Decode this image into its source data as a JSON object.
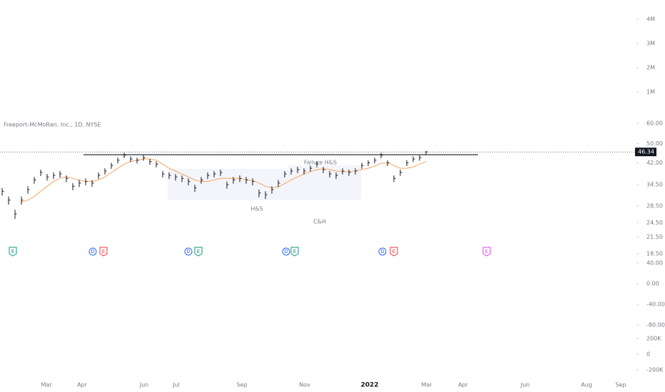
{
  "chart_data": {
    "type": "ohlc",
    "title": "Freeport-McMoRan, Inc., 1D, NYSE",
    "log_scale": true,
    "ylim": [
      18.5,
      60
    ],
    "yticks": [
      {
        "value": 60,
        "label": "60.00"
      },
      {
        "value": 50,
        "label": "50.00"
      },
      {
        "value": 42,
        "label": "42.00"
      },
      {
        "value": 34.5,
        "label": "34.50"
      },
      {
        "value": 28.5,
        "label": "28.50"
      },
      {
        "value": 24.5,
        "label": "24.50"
      },
      {
        "value": 21.5,
        "label": "21.50"
      },
      {
        "value": 18.5,
        "label": "18.50"
      }
    ],
    "xticks": [
      "Mar",
      "Apr",
      "Jun",
      "Jul",
      "Sep",
      "Nov",
      "2022",
      "Mar",
      "Apr",
      "Jun",
      "Aug",
      "Sep"
    ],
    "color": "#131722",
    "high": [
      33.5,
      31,
      27.5,
      31,
      34,
      37,
      39.5,
      38,
      38.5,
      39,
      37.5,
      35,
      36,
      36.5,
      36,
      38.5,
      40,
      42,
      44,
      46,
      44.5,
      44,
      45,
      43.5,
      42.5,
      39,
      38.5,
      38,
      37.5,
      36.5,
      34.5,
      37,
      38.5,
      39,
      39.5,
      35.5,
      37,
      37.5,
      37,
      36.5,
      33,
      32.5,
      34,
      36,
      39,
      40,
      40.5,
      40,
      41,
      42.5,
      40.5,
      39,
      38.5,
      40,
      39.5,
      40,
      42,
      43,
      44,
      46,
      43,
      37.5,
      39.5,
      43,
      44.5,
      45,
      46.8
    ],
    "low": [
      31.3,
      28.8,
      25.3,
      28.8,
      31.8,
      34.8,
      37.3,
      35.8,
      36.3,
      36.8,
      35.3,
      32.8,
      33.8,
      34.3,
      33.8,
      36.3,
      37.8,
      39.8,
      41.8,
      43.8,
      42.3,
      41.8,
      42.8,
      41.3,
      40.3,
      36.8,
      36.3,
      35.8,
      35.3,
      34.3,
      32.3,
      34.8,
      36.3,
      36.8,
      37.3,
      33.3,
      34.8,
      35.3,
      34.8,
      34.3,
      30.8,
      30.3,
      31.8,
      33.8,
      36.8,
      37.8,
      38.3,
      37.8,
      38.8,
      40.3,
      38.3,
      36.8,
      36.3,
      37.8,
      37.3,
      37.8,
      39.8,
      40.8,
      41.8,
      43.8,
      40.8,
      35.3,
      37.3,
      40.8,
      42.3,
      42.8,
      45.1
    ],
    "close": [
      32.5,
      30,
      26.5,
      30,
      33,
      36,
      38.5,
      37,
      37.5,
      38,
      36.5,
      34,
      35,
      35.5,
      35,
      37.5,
      39,
      41,
      43,
      45,
      43.5,
      43,
      44,
      42.5,
      41.5,
      38,
      37.5,
      37,
      36.5,
      35.5,
      33.5,
      36,
      37.5,
      38,
      38.5,
      34.5,
      36,
      36.5,
      36,
      35.5,
      32,
      31.5,
      33,
      35,
      38,
      39,
      39.5,
      39,
      40,
      41.5,
      39.5,
      38,
      37.5,
      39,
      38.5,
      39,
      41,
      42,
      43,
      45,
      42,
      36.5,
      38.5,
      42,
      43.5,
      44,
      46.34
    ],
    "ma_color": "#f7a35c",
    "ma": [
      null,
      null,
      null,
      29.5,
      30,
      31,
      32.5,
      34,
      35.5,
      36.5,
      37,
      36.5,
      36,
      35.5,
      35.5,
      36,
      37,
      38.5,
      40,
      41.5,
      42.5,
      43,
      43.5,
      43.5,
      43,
      41.5,
      40,
      39,
      38,
      37,
      36,
      35.5,
      35.5,
      36,
      36.5,
      36.5,
      36.5,
      36.5,
      36,
      35.8,
      35,
      34,
      33.5,
      33.8,
      34.8,
      36,
      37,
      38,
      38.8,
      39.5,
      39.8,
      39.5,
      39,
      38.8,
      38.8,
      39,
      39.5,
      40,
      40.8,
      41.8,
      42,
      41,
      40,
      40,
      40.5,
      41.5,
      42.5
    ],
    "resistance": 45.2,
    "zones": [
      {
        "top": 39.8,
        "bottom": 30
      },
      {
        "top": 41.1,
        "bottom": 30
      }
    ],
    "annotations": [
      "Failure H&S",
      "H&S",
      "C&H"
    ],
    "events": [
      {
        "letter": "E",
        "color": "#089981"
      },
      {
        "letter": "D",
        "color": "#2962ff"
      },
      {
        "letter": "E",
        "color": "#f23645"
      },
      {
        "letter": "D",
        "color": "#2962ff"
      },
      {
        "letter": "E",
        "color": "#089981"
      },
      {
        "letter": "D",
        "color": "#2962ff"
      },
      {
        "letter": "E",
        "color": "#089981"
      },
      {
        "letter": "D",
        "color": "#2962ff"
      },
      {
        "letter": "E",
        "color": "#f23645"
      },
      {
        "letter": "E",
        "color": "#e040fb"
      }
    ],
    "volume_axis": {
      "ylim": [
        0,
        4000000
      ],
      "yticks": [
        {
          "value": 4000000,
          "label": "4M"
        },
        {
          "value": 3000000,
          "label": "3M"
        },
        {
          "value": 2000000,
          "label": "2M"
        },
        {
          "value": 1000000,
          "label": "1M"
        }
      ]
    },
    "oscillator_axis": {
      "ylim": [
        -80,
        40
      ],
      "yticks": [
        {
          "value": 40,
          "label": "40.00"
        },
        {
          "value": 0,
          "label": "0.00"
        },
        {
          "value": -40,
          "label": "-40.00"
        },
        {
          "value": -80,
          "label": "-80.00"
        }
      ]
    },
    "flow_axis": {
      "ylim": [
        -200000,
        200000
      ],
      "yticks": [
        {
          "value": 200000,
          "label": "200K"
        },
        0,
        {
          "value": -200000,
          "label": "-200K"
        }
      ]
    }
  }
}
